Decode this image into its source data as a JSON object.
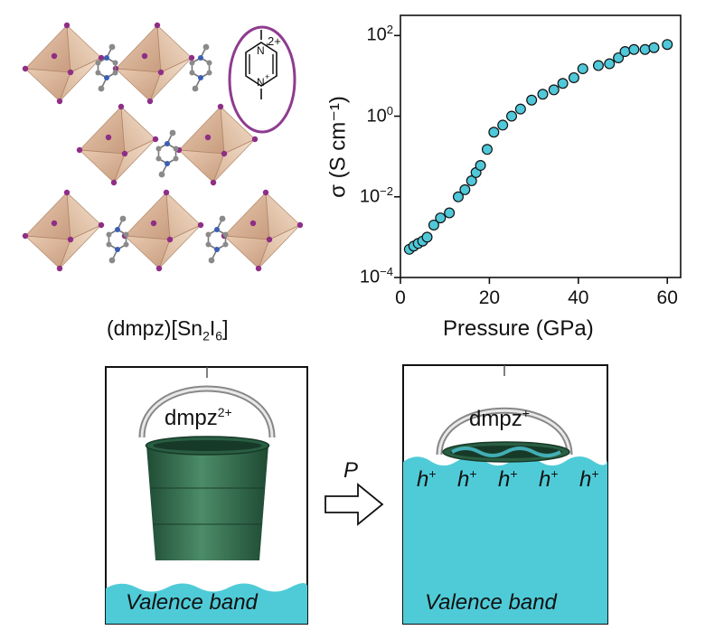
{
  "structure": {
    "formula_prefix": "(dmpz)[Sn",
    "formula_sub1": "2",
    "formula_mid": "I",
    "formula_sub2": "6",
    "formula_suffix": "]",
    "cation_charge": "2+"
  },
  "chart_data": {
    "type": "scatter",
    "xlabel": "Pressure (GPa)",
    "ylabel": "σ (S cm⁻¹)",
    "xlim": [
      0,
      63
    ],
    "ylim_log10": [
      -4,
      2.5
    ],
    "yscale": "log",
    "x_ticks": [
      "0",
      "20",
      "40",
      "60"
    ],
    "y_ticks": [
      {
        "base": "10",
        "exp": "2"
      },
      {
        "base": "10",
        "exp": "0"
      },
      {
        "base": "10",
        "exp": "−2"
      },
      {
        "base": "10",
        "exp": "−4"
      }
    ],
    "marker_color": "#4fc8d9",
    "points": [
      [
        2.0,
        0.0005
      ],
      [
        3.0,
        0.0006
      ],
      [
        4.0,
        0.0007
      ],
      [
        5.0,
        0.0008
      ],
      [
        6.0,
        0.001
      ],
      [
        7.5,
        0.002
      ],
      [
        9.0,
        0.003
      ],
      [
        11.0,
        0.004
      ],
      [
        13.0,
        0.01
      ],
      [
        14.5,
        0.015
      ],
      [
        16.0,
        0.025
      ],
      [
        17.0,
        0.04
      ],
      [
        18.0,
        0.06
      ],
      [
        19.5,
        0.15
      ],
      [
        21.0,
        0.4
      ],
      [
        23.0,
        0.6
      ],
      [
        25.0,
        1.0
      ],
      [
        27.0,
        1.5
      ],
      [
        29.5,
        2.5
      ],
      [
        32.0,
        3.5
      ],
      [
        34.5,
        4.5
      ],
      [
        36.5,
        6.5
      ],
      [
        39.0,
        9.0
      ],
      [
        41.0,
        15.0
      ],
      [
        44.5,
        18.0
      ],
      [
        47.0,
        20.0
      ],
      [
        49.0,
        28.0
      ],
      [
        50.5,
        40.0
      ],
      [
        52.5,
        45.0
      ],
      [
        55.0,
        45.0
      ],
      [
        57.0,
        50.0
      ],
      [
        60.0,
        60.0
      ]
    ]
  },
  "schematic": {
    "left_label_base": "dmpz",
    "left_label_sup": "2+",
    "right_label_base": "dmpz",
    "right_label_sup": "+",
    "arrow_label": "P",
    "hole_base": "h",
    "hole_sup": "+",
    "holes": [
      "h",
      "h",
      "h",
      "h",
      "h"
    ],
    "valence_band_left": "Valence band",
    "valence_band_right": "Valence band",
    "water_color": "#4fcbd8",
    "bucket_color": "#2f6b4c"
  }
}
